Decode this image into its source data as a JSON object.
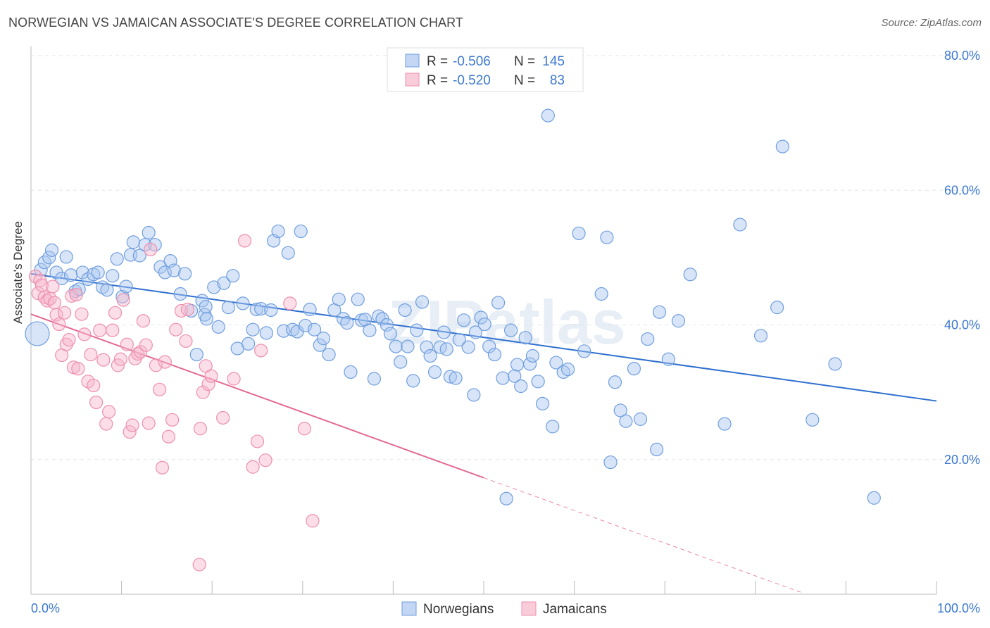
{
  "header": {
    "title": "NORWEGIAN VS JAMAICAN ASSOCIATE'S DEGREE CORRELATION CHART",
    "source": "Source: ZipAtlas.com"
  },
  "watermark": "ZIPatlas",
  "colors": {
    "norwegian_fill": "#a9c6ef",
    "norwegian_stroke": "#6f9ede",
    "norwegian_line": "#2f6fcf",
    "jamaican_fill": "#f7b6cb",
    "jamaican_stroke": "#ee8fad",
    "jamaican_line": "#e26a95",
    "axis_text": "#3b78d0"
  },
  "chart_data": {
    "type": "scatter",
    "title": "NORWEGIAN VS JAMAICAN ASSOCIATE'S DEGREE CORRELATION CHART",
    "xlabel": "",
    "ylabel": "Associate's Degree",
    "xlim": [
      0,
      100
    ],
    "ylim": [
      0,
      80
    ],
    "x_tick_labels": [
      "0.0%",
      "100.0%"
    ],
    "y_ticks": [
      20,
      40,
      60,
      80
    ],
    "y_tick_labels": [
      "20.0%",
      "40.0%",
      "60.0%",
      "80.0%"
    ],
    "grid": true,
    "legend": {
      "placement": "top-center",
      "entries": [
        {
          "r_label": "R =",
          "r_value": "-0.506",
          "n_label": "N =",
          "n_value": "145"
        },
        {
          "r_label": "R =",
          "r_value": "-0.520",
          "n_label": "N =",
          "n_value": "83"
        }
      ]
    },
    "bottom_legend": [
      "Norwegians",
      "Jamaicans"
    ],
    "series": [
      {
        "name": "Norwegians",
        "trend": {
          "x": [
            0,
            100
          ],
          "y": [
            47.6,
            28.7
          ]
        },
        "points": [
          [
            0.7,
            38.7
          ],
          [
            1.1,
            48.2
          ],
          [
            1.5,
            49.3
          ],
          [
            2.0,
            50.0
          ],
          [
            2.3,
            51.1
          ],
          [
            2.8,
            47.8
          ],
          [
            3.4,
            46.9
          ],
          [
            3.9,
            50.1
          ],
          [
            4.4,
            47.4
          ],
          [
            4.9,
            45.0
          ],
          [
            5.3,
            45.3
          ],
          [
            5.7,
            47.8
          ],
          [
            6.3,
            46.8
          ],
          [
            6.9,
            47.5
          ],
          [
            7.4,
            47.8
          ],
          [
            7.9,
            45.6
          ],
          [
            8.4,
            45.2
          ],
          [
            9.0,
            47.3
          ],
          [
            9.5,
            49.8
          ],
          [
            10.1,
            44.2
          ],
          [
            10.5,
            45.7
          ],
          [
            11.0,
            50.4
          ],
          [
            11.3,
            52.3
          ],
          [
            12.0,
            50.3
          ],
          [
            12.6,
            51.9
          ],
          [
            13.0,
            53.7
          ],
          [
            13.7,
            51.9
          ],
          [
            14.3,
            48.6
          ],
          [
            14.8,
            47.8
          ],
          [
            15.4,
            49.5
          ],
          [
            15.8,
            48.1
          ],
          [
            16.5,
            44.6
          ],
          [
            17.0,
            47.6
          ],
          [
            17.7,
            42.1
          ],
          [
            18.3,
            35.6
          ],
          [
            18.9,
            43.6
          ],
          [
            19.2,
            41.5
          ],
          [
            19.3,
            42.7
          ],
          [
            19.4,
            40.9
          ],
          [
            20.2,
            45.6
          ],
          [
            20.7,
            39.7
          ],
          [
            21.3,
            46.2
          ],
          [
            21.8,
            42.6
          ],
          [
            22.3,
            47.3
          ],
          [
            22.8,
            36.5
          ],
          [
            23.4,
            43.2
          ],
          [
            24.0,
            37.2
          ],
          [
            24.5,
            39.3
          ],
          [
            24.9,
            42.3
          ],
          [
            25.4,
            42.4
          ],
          [
            26.0,
            38.8
          ],
          [
            26.5,
            42.2
          ],
          [
            26.8,
            52.5
          ],
          [
            27.3,
            53.9
          ],
          [
            27.9,
            39.1
          ],
          [
            28.4,
            50.7
          ],
          [
            28.9,
            39.3
          ],
          [
            29.4,
            39.0
          ],
          [
            29.8,
            53.9
          ],
          [
            30.3,
            39.9
          ],
          [
            30.8,
            42.3
          ],
          [
            31.3,
            39.3
          ],
          [
            31.9,
            37.0
          ],
          [
            32.3,
            38.0
          ],
          [
            32.9,
            35.6
          ],
          [
            33.5,
            42.2
          ],
          [
            34.0,
            43.8
          ],
          [
            34.5,
            40.9
          ],
          [
            34.9,
            40.3
          ],
          [
            35.3,
            33.0
          ],
          [
            36.1,
            43.8
          ],
          [
            36.5,
            40.7
          ],
          [
            36.9,
            40.8
          ],
          [
            37.4,
            39.2
          ],
          [
            37.9,
            32.0
          ],
          [
            38.4,
            41.3
          ],
          [
            38.8,
            40.9
          ],
          [
            39.3,
            40.0
          ],
          [
            39.7,
            38.7
          ],
          [
            40.3,
            36.8
          ],
          [
            40.8,
            34.5
          ],
          [
            41.3,
            42.2
          ],
          [
            41.6,
            36.8
          ],
          [
            42.2,
            31.7
          ],
          [
            42.6,
            39.2
          ],
          [
            43.2,
            43.4
          ],
          [
            43.7,
            36.7
          ],
          [
            44.1,
            35.4
          ],
          [
            44.6,
            33.0
          ],
          [
            45.2,
            36.7
          ],
          [
            45.6,
            38.9
          ],
          [
            45.9,
            36.4
          ],
          [
            46.3,
            32.3
          ],
          [
            46.9,
            32.1
          ],
          [
            47.3,
            37.8
          ],
          [
            47.8,
            40.7
          ],
          [
            48.3,
            36.7
          ],
          [
            48.9,
            29.6
          ],
          [
            49.1,
            38.9
          ],
          [
            49.7,
            41.1
          ],
          [
            50.1,
            40.1
          ],
          [
            50.6,
            36.8
          ],
          [
            51.2,
            35.6
          ],
          [
            51.6,
            43.3
          ],
          [
            52.1,
            32.1
          ],
          [
            52.5,
            14.2
          ],
          [
            53.0,
            39.2
          ],
          [
            53.4,
            32.4
          ],
          [
            53.7,
            34.1
          ],
          [
            54.1,
            30.9
          ],
          [
            54.6,
            38.1
          ],
          [
            55.1,
            34.2
          ],
          [
            55.4,
            35.4
          ],
          [
            56.0,
            31.6
          ],
          [
            56.5,
            28.3
          ],
          [
            57.1,
            71.1
          ],
          [
            57.6,
            24.9
          ],
          [
            58.0,
            34.4
          ],
          [
            58.8,
            33.0
          ],
          [
            59.3,
            33.4
          ],
          [
            60.5,
            53.6
          ],
          [
            61.1,
            36.1
          ],
          [
            63.0,
            44.6
          ],
          [
            63.6,
            53.0
          ],
          [
            64.0,
            19.6
          ],
          [
            64.5,
            31.5
          ],
          [
            65.1,
            27.3
          ],
          [
            65.7,
            25.7
          ],
          [
            66.6,
            33.5
          ],
          [
            67.3,
            26.0
          ],
          [
            68.1,
            37.9
          ],
          [
            69.1,
            21.5
          ],
          [
            69.4,
            41.9
          ],
          [
            70.4,
            34.9
          ],
          [
            71.5,
            40.6
          ],
          [
            72.8,
            47.5
          ],
          [
            76.6,
            25.3
          ],
          [
            78.3,
            54.9
          ],
          [
            80.6,
            38.4
          ],
          [
            82.4,
            42.6
          ],
          [
            83.0,
            66.5
          ],
          [
            86.3,
            25.9
          ],
          [
            88.8,
            34.2
          ],
          [
            93.1,
            14.3
          ]
        ]
      },
      {
        "name": "Jamaicans",
        "trend": {
          "x": [
            0,
            50
          ],
          "y": [
            41.6,
            17.3
          ]
        },
        "trend_dashed": {
          "x": [
            50,
            85
          ],
          "y": [
            17.3,
            0.3
          ]
        },
        "points": [
          [
            0.5,
            47.2
          ],
          [
            0.8,
            44.7
          ],
          [
            1.0,
            46.6
          ],
          [
            1.2,
            45.9
          ],
          [
            1.5,
            44.1
          ],
          [
            1.8,
            43.6
          ],
          [
            2.1,
            43.9
          ],
          [
            2.4,
            45.7
          ],
          [
            2.6,
            43.3
          ],
          [
            2.8,
            41.5
          ],
          [
            3.1,
            40.1
          ],
          [
            3.4,
            35.5
          ],
          [
            3.7,
            41.8
          ],
          [
            3.9,
            37.1
          ],
          [
            4.2,
            37.8
          ],
          [
            4.5,
            44.3
          ],
          [
            4.7,
            33.7
          ],
          [
            5.0,
            44.5
          ],
          [
            5.2,
            33.5
          ],
          [
            5.6,
            41.6
          ],
          [
            5.9,
            38.6
          ],
          [
            6.3,
            31.6
          ],
          [
            6.6,
            35.6
          ],
          [
            6.9,
            31.0
          ],
          [
            7.2,
            28.5
          ],
          [
            7.6,
            39.2
          ],
          [
            8.0,
            34.8
          ],
          [
            8.3,
            25.3
          ],
          [
            8.6,
            27.1
          ],
          [
            9.0,
            39.2
          ],
          [
            9.3,
            41.8
          ],
          [
            9.6,
            34.0
          ],
          [
            9.9,
            34.9
          ],
          [
            10.2,
            43.7
          ],
          [
            10.6,
            37.1
          ],
          [
            10.9,
            24.1
          ],
          [
            11.2,
            25.1
          ],
          [
            11.5,
            35.0
          ],
          [
            11.8,
            35.7
          ],
          [
            12.1,
            36.0
          ],
          [
            12.4,
            40.6
          ],
          [
            12.7,
            37.0
          ],
          [
            13.0,
            25.4
          ],
          [
            13.2,
            51.2
          ],
          [
            13.8,
            34.0
          ],
          [
            14.2,
            30.4
          ],
          [
            14.5,
            18.8
          ],
          [
            14.8,
            34.5
          ],
          [
            15.2,
            23.4
          ],
          [
            15.6,
            25.9
          ],
          [
            16.0,
            39.3
          ],
          [
            16.6,
            42.1
          ],
          [
            17.1,
            37.6
          ],
          [
            17.3,
            42.3
          ],
          [
            18.6,
            4.4
          ],
          [
            18.7,
            24.6
          ],
          [
            19.0,
            30.0
          ],
          [
            19.3,
            33.9
          ],
          [
            19.6,
            31.2
          ],
          [
            19.9,
            32.4
          ],
          [
            21.2,
            26.2
          ],
          [
            22.4,
            32.0
          ],
          [
            23.6,
            52.5
          ],
          [
            24.5,
            18.9
          ],
          [
            25.0,
            22.7
          ],
          [
            25.4,
            36.2
          ],
          [
            25.9,
            19.9
          ],
          [
            28.6,
            43.2
          ],
          [
            30.2,
            24.6
          ],
          [
            31.1,
            10.9
          ]
        ]
      }
    ]
  }
}
